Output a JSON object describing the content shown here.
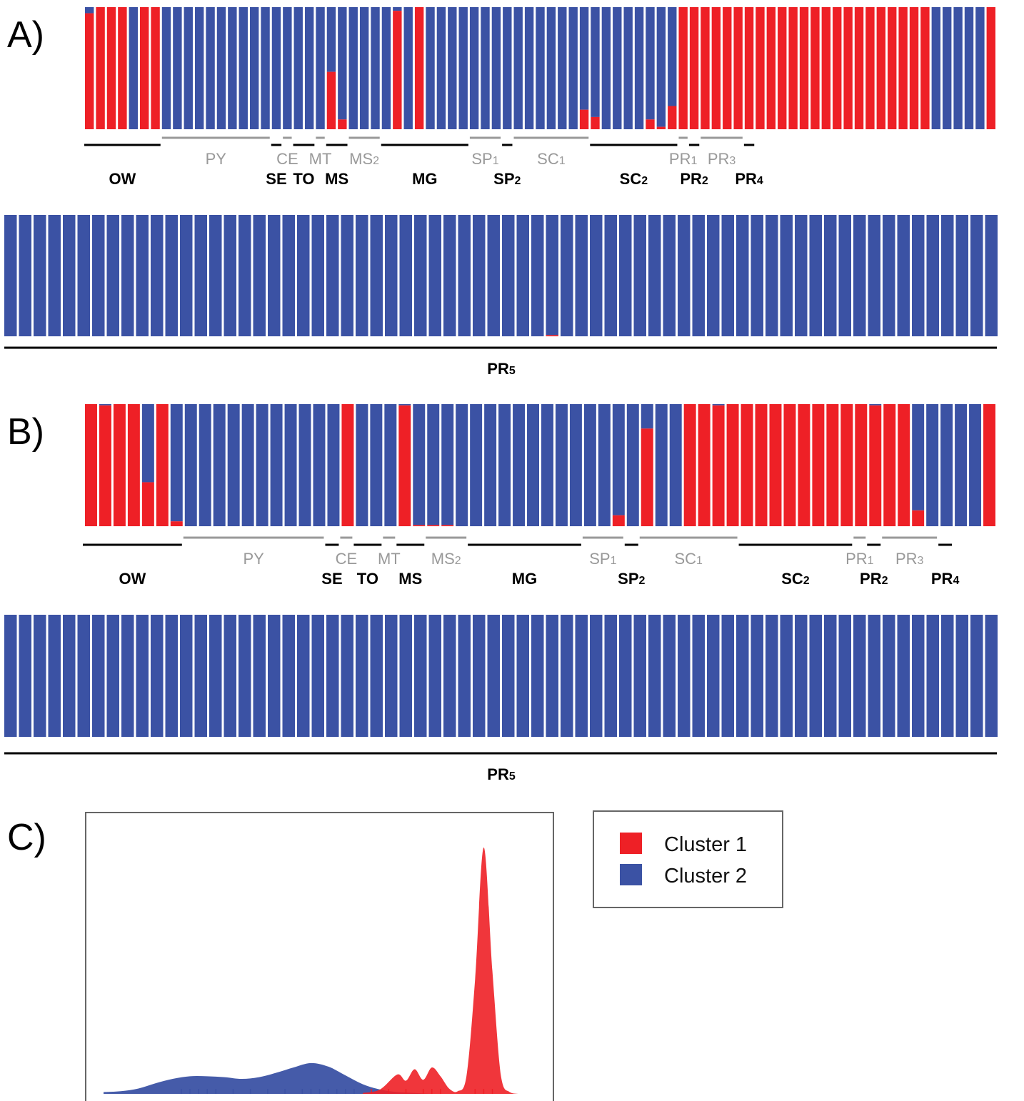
{
  "colors": {
    "cluster1": "#ee2026",
    "cluster2": "#3b52a4",
    "line_top": "#999999",
    "line_bottom": "#000000",
    "frame": "#666666"
  },
  "chart_data": [
    {
      "type": "bar",
      "panel": "A)",
      "stacked": true,
      "ylim": [
        0,
        1
      ],
      "series": [
        {
          "name": "Cluster 1",
          "values": [
            0.95,
            1,
            1,
            1,
            0,
            1,
            1,
            0,
            0,
            0,
            0,
            0,
            0,
            0,
            0,
            0,
            0,
            0,
            0,
            0,
            0,
            0,
            0.47,
            0.08,
            0,
            0,
            0,
            0,
            0.97,
            0,
            1,
            0,
            0,
            0,
            0,
            0,
            0,
            0,
            0,
            0,
            0,
            0,
            0,
            0,
            0,
            0.16,
            0.1,
            0,
            0,
            0,
            0,
            0.08,
            0.02,
            0.19,
            1,
            1,
            1,
            1,
            1,
            1,
            1,
            1,
            1,
            1,
            1,
            1,
            1,
            1,
            1,
            1,
            1,
            1,
            1,
            1,
            1,
            1,
            1,
            0,
            0,
            0,
            0,
            0,
            1
          ]
        },
        {
          "name": "Cluster 2",
          "values": [
            0.05,
            0,
            0,
            0,
            1,
            0,
            0,
            1,
            1,
            1,
            1,
            1,
            1,
            1,
            1,
            1,
            1,
            1,
            1,
            1,
            1,
            1,
            0.53,
            0.92,
            1,
            1,
            1,
            1,
            0.03,
            1,
            0,
            1,
            1,
            1,
            1,
            1,
            1,
            1,
            1,
            1,
            1,
            1,
            1,
            1,
            1,
            0.84,
            0.9,
            1,
            1,
            1,
            1,
            0.92,
            0.98,
            0.81,
            0,
            0,
            0,
            0,
            0,
            0,
            0,
            0,
            0,
            0,
            0,
            0,
            0,
            0,
            0,
            0,
            0,
            0,
            0,
            0,
            0,
            0,
            0,
            1,
            1,
            1,
            1,
            1,
            0
          ]
        }
      ],
      "groups": [
        {
          "label": "OW",
          "row": "bottom",
          "start": 0,
          "end": 6
        },
        {
          "label": "PY",
          "row": "top",
          "start": 7,
          "end": 16
        },
        {
          "label": "SE",
          "row": "bottom",
          "start": 17,
          "end": 17
        },
        {
          "label": "CE",
          "row": "top",
          "start": 18,
          "end": 18
        },
        {
          "label": "TO",
          "row": "bottom",
          "start": 19,
          "end": 20
        },
        {
          "label": "MT",
          "row": "top",
          "start": 21,
          "end": 21
        },
        {
          "label": "MS",
          "row": "bottom",
          "start": 22,
          "end": 23
        },
        {
          "label": "MS",
          "sub": "2",
          "row": "top",
          "start": 24,
          "end": 26
        },
        {
          "label": "MG",
          "row": "bottom",
          "start": 27,
          "end": 34
        },
        {
          "label": "SP",
          "sub": "1",
          "row": "top",
          "start": 35,
          "end": 37
        },
        {
          "label": "SP",
          "sub": "2",
          "row": "bottom",
          "start": 38,
          "end": 38
        },
        {
          "label": "SC",
          "sub": "1",
          "row": "top",
          "start": 39,
          "end": 45
        },
        {
          "label": "SC",
          "sub": "2",
          "row": "bottom",
          "start": 46,
          "end": 53
        },
        {
          "label": "PR",
          "sub": "1",
          "row": "top",
          "start": 54,
          "end": 54
        },
        {
          "label": "PR",
          "sub": "2",
          "row": "bottom",
          "start": 55,
          "end": 55
        },
        {
          "label": "PR",
          "sub": "3",
          "row": "top",
          "start": 56,
          "end": 59
        },
        {
          "label": "PR",
          "sub": "4",
          "row": "bottom",
          "start": 60,
          "end": 60
        }
      ],
      "row2": {
        "group": "PR",
        "sub": "5",
        "count": 68,
        "cluster1_values": [
          0,
          0,
          0,
          0,
          0,
          0,
          0,
          0,
          0,
          0,
          0,
          0,
          0,
          0,
          0,
          0,
          0,
          0,
          0,
          0,
          0,
          0,
          0,
          0,
          0,
          0,
          0,
          0,
          0,
          0,
          0,
          0,
          0,
          0,
          0,
          0,
          0,
          0.01,
          0,
          0,
          0,
          0,
          0,
          0,
          0,
          0,
          0,
          0,
          0,
          0,
          0,
          0,
          0,
          0,
          0,
          0,
          0,
          0,
          0,
          0,
          0,
          0,
          0,
          0,
          0,
          0,
          0,
          0
        ]
      }
    },
    {
      "type": "bar",
      "panel": "B)",
      "stacked": true,
      "ylim": [
        0,
        1
      ],
      "series": [
        {
          "name": "Cluster 1",
          "values": [
            1,
            0.99,
            1,
            1,
            0.36,
            1,
            0.04,
            0,
            0,
            0,
            0,
            0,
            0,
            0,
            0,
            0,
            0,
            0,
            1,
            0,
            0,
            0,
            0.99,
            0.01,
            0.01,
            0.01,
            0,
            0,
            0,
            0,
            0,
            0,
            0,
            0,
            0,
            0,
            0,
            0.09,
            0,
            0.8,
            0,
            0,
            1,
            1,
            0.99,
            1,
            1,
            1,
            1,
            1,
            1,
            1,
            1,
            1,
            1,
            0.99,
            1,
            1,
            0.13,
            0,
            0,
            0,
            0,
            1
          ]
        },
        {
          "name": "Cluster 2",
          "values": [
            0,
            0.01,
            0,
            0,
            0.64,
            0,
            0.96,
            1,
            1,
            1,
            1,
            1,
            1,
            1,
            1,
            1,
            1,
            1,
            0,
            1,
            1,
            1,
            0.01,
            0.99,
            0.99,
            0.99,
            1,
            1,
            1,
            1,
            1,
            1,
            1,
            1,
            1,
            1,
            1,
            0.91,
            1,
            0.2,
            1,
            1,
            0,
            0,
            0.01,
            0,
            0,
            0,
            0,
            0,
            0,
            0,
            0,
            0,
            0,
            0.01,
            0,
            0,
            0.87,
            1,
            1,
            1,
            1,
            0
          ]
        }
      ],
      "groups": [
        {
          "label": "OW",
          "row": "bottom",
          "start": 0,
          "end": 6
        },
        {
          "label": "PY",
          "row": "top",
          "start": 7,
          "end": 16
        },
        {
          "label": "SE",
          "row": "bottom",
          "start": 17,
          "end": 17
        },
        {
          "label": "CE",
          "row": "top",
          "start": 18,
          "end": 18
        },
        {
          "label": "TO",
          "row": "bottom",
          "start": 19,
          "end": 20
        },
        {
          "label": "MT",
          "row": "top",
          "start": 21,
          "end": 21
        },
        {
          "label": "MS",
          "row": "bottom",
          "start": 22,
          "end": 23
        },
        {
          "label": "MS",
          "sub": "2",
          "row": "top",
          "start": 24,
          "end": 26
        },
        {
          "label": "MG",
          "row": "bottom",
          "start": 27,
          "end": 34
        },
        {
          "label": "SP",
          "sub": "1",
          "row": "top",
          "start": 35,
          "end": 37
        },
        {
          "label": "SP",
          "sub": "2",
          "row": "bottom",
          "start": 38,
          "end": 38
        },
        {
          "label": "SC",
          "sub": "1",
          "row": "top",
          "start": 39,
          "end": 45
        },
        {
          "label": "SC",
          "sub": "2",
          "row": "bottom",
          "start": 46,
          "end": 53
        },
        {
          "label": "PR",
          "sub": "1",
          "row": "top",
          "start": 54,
          "end": 54
        },
        {
          "label": "PR",
          "sub": "2",
          "row": "bottom",
          "start": 55,
          "end": 55
        },
        {
          "label": "PR",
          "sub": "3",
          "row": "top",
          "start": 56,
          "end": 59
        },
        {
          "label": "PR",
          "sub": "4",
          "row": "bottom",
          "start": 60,
          "end": 60
        }
      ],
      "row2": {
        "group": "PR",
        "sub": "5",
        "count": 68,
        "cluster1_values": []
      }
    },
    {
      "type": "area",
      "panel": "C)",
      "xlim": [
        0,
        1
      ],
      "series": [
        {
          "name": "Cluster 2",
          "x": [
            0,
            0.04,
            0.08,
            0.12,
            0.16,
            0.2,
            0.24,
            0.28,
            0.32,
            0.36,
            0.4,
            0.44,
            0.48,
            0.52,
            0.56,
            0.6,
            0.64,
            0.68,
            0.72,
            0.76,
            0.8,
            0.84,
            0.88
          ],
          "y": [
            0.02,
            0.03,
            0.06,
            0.12,
            0.17,
            0.2,
            0.2,
            0.19,
            0.17,
            0.19,
            0.24,
            0.3,
            0.35,
            0.31,
            0.21,
            0.11,
            0.05,
            0.02,
            0.01,
            0,
            0,
            0,
            0
          ]
        },
        {
          "name": "Cluster 1",
          "x": [
            0.6,
            0.64,
            0.68,
            0.7,
            0.72,
            0.74,
            0.76,
            0.78,
            0.8,
            0.82,
            0.84,
            0.86,
            0.88,
            0.9,
            0.92,
            0.94,
            0.96,
            0.98,
            1
          ],
          "y": [
            0.01,
            0.05,
            0.22,
            0.15,
            0.28,
            0.16,
            0.3,
            0.2,
            0.06,
            0.03,
            0.2,
            1.3,
            2.8,
            1.4,
            0.2,
            0.02,
            0,
            0,
            0
          ]
        }
      ],
      "rug_cluster2": [
        0.18,
        0.2,
        0.22,
        0.24,
        0.26,
        0.3,
        0.34,
        0.38,
        0.42,
        0.46,
        0.48,
        0.5,
        0.52,
        0.54,
        0.56,
        0.58
      ],
      "rug_cluster1": [
        0.62,
        0.66,
        0.7,
        0.74,
        0.76,
        0.78,
        0.86,
        0.88,
        0.9
      ]
    }
  ],
  "legend": {
    "items": [
      {
        "label": "Cluster 1",
        "color": "#ee2026"
      },
      {
        "label": "Cluster 2",
        "color": "#3b52a4"
      }
    ]
  }
}
